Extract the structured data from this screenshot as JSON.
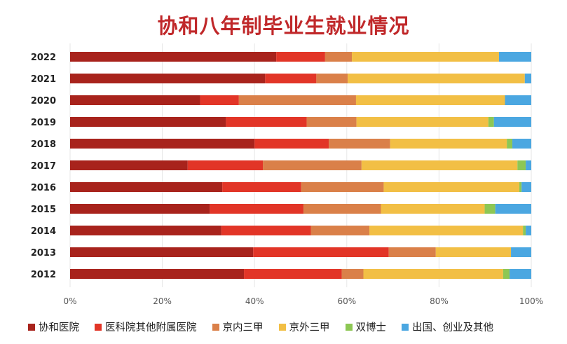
{
  "chart_data": {
    "type": "bar",
    "orientation": "horizontal",
    "stacked": "percent",
    "title": "协和八年制毕业生就业情况",
    "categories": [
      "2022",
      "2021",
      "2020",
      "2019",
      "2018",
      "2017",
      "2016",
      "2015",
      "2014",
      "2013",
      "2012"
    ],
    "xlim": [
      0,
      100
    ],
    "xticks": [
      "0%",
      "20%",
      "40%",
      "60%",
      "80%",
      "100%"
    ],
    "grid": true,
    "legend_position": "bottom",
    "series": [
      {
        "name": "协和医院",
        "color": "#a8231c",
        "values": [
          44.7,
          42.3,
          28.2,
          33.8,
          40.0,
          25.5,
          33.0,
          30.3,
          32.8,
          39.7,
          37.7
        ]
      },
      {
        "name": "医科院其他附属医院",
        "color": "#e23527",
        "values": [
          10.6,
          11.1,
          8.4,
          17.5,
          16.1,
          16.3,
          17.1,
          20.3,
          19.4,
          29.4,
          21.2
        ]
      },
      {
        "name": "京内三甲",
        "color": "#da8049",
        "values": [
          5.8,
          6.8,
          25.4,
          10.8,
          13.3,
          21.4,
          17.9,
          16.8,
          12.7,
          10.2,
          4.7
        ]
      },
      {
        "name": "京外三甲",
        "color": "#f2bf45",
        "values": [
          31.9,
          38.4,
          32.3,
          28.6,
          25.3,
          33.8,
          29.4,
          22.5,
          33.3,
          16.3,
          30.3
        ]
      },
      {
        "name": "双博士",
        "color": "#8dc754",
        "values": [
          0,
          0,
          0,
          1.2,
          1.2,
          1.8,
          0.5,
          2.3,
          0.6,
          0,
          1.4
        ]
      },
      {
        "name": "出国、创业及其他",
        "color": "#4ba7e1",
        "values": [
          7.0,
          1.4,
          5.7,
          8.1,
          4.1,
          1.2,
          2.1,
          7.8,
          1.2,
          4.4,
          4.7
        ]
      }
    ]
  }
}
